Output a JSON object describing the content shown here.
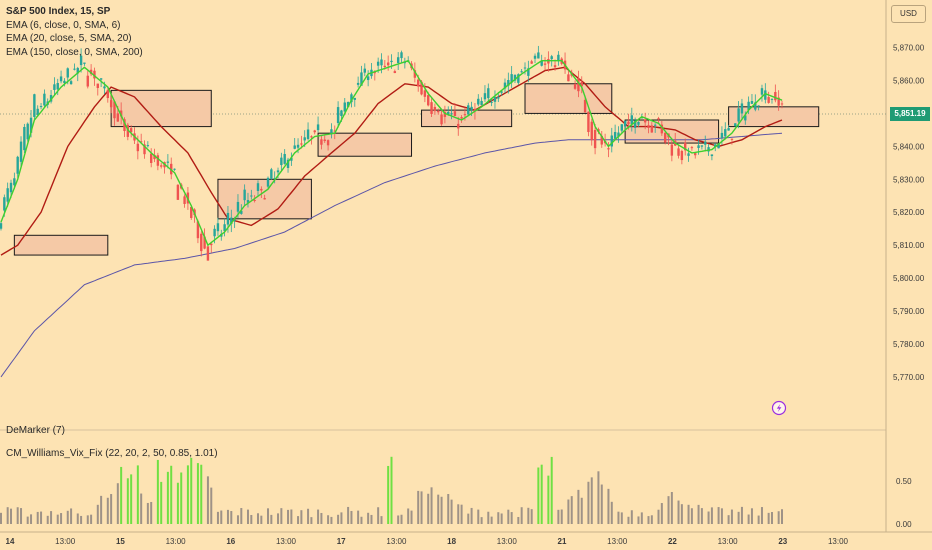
{
  "legend": {
    "title": "S&P 500 Index, 15, SP",
    "lines": [
      "EMA (6, close, 0, SMA, 6)",
      "EMA (20, close, 5, SMA, 20)",
      "EMA (150, close, 0, SMA, 200)"
    ]
  },
  "indicators": {
    "demarker": "DeMarker (7)",
    "vix_fix": "CM_Williams_Vix_Fix (22, 20, 2, 50, 0.85, 1.01)"
  },
  "currency": "USD",
  "last_price": "5,851.19",
  "colors": {
    "background": "#fde3b3",
    "candle_up": "#26a69a",
    "candle_down": "#ef5350",
    "ema_fast": "#3ecf2f",
    "ema_mid": "#b11c14",
    "ema_slow": "#5b55a8",
    "zone_fill": "#f5c9a6",
    "vix_green": "#6fe043",
    "vix_gray": "#9e9287"
  },
  "chart_data": {
    "type": "candlestick",
    "title": "S&P 500 Index, 15, SP",
    "price_axis": {
      "range": [
        5763,
        5882
      ],
      "ticks": [
        "5,870.00",
        "5,860.00",
        "5,850.00",
        "5,840.00",
        "5,830.00",
        "5,820.00",
        "5,810.00",
        "5,800.00",
        "5,790.00",
        "5,780.00",
        "5,770.00"
      ]
    },
    "indicator_axis": {
      "range": [
        0,
        1.0
      ],
      "ticks": [
        "0.50",
        "0.00"
      ]
    },
    "x_ticks": [
      "14",
      "13:00",
      "15",
      "13:00",
      "16",
      "13:00",
      "17",
      "13:00",
      "18",
      "13:00",
      "21",
      "13:00",
      "22",
      "13:00",
      "23",
      "13:00"
    ],
    "x_tick_is_day": [
      true,
      false,
      true,
      false,
      true,
      false,
      true,
      false,
      true,
      false,
      true,
      false,
      true,
      false,
      true,
      false
    ],
    "ema_fast_keypoints": [
      [
        0,
        5817
      ],
      [
        5,
        5830
      ],
      [
        10,
        5848
      ],
      [
        18,
        5858
      ],
      [
        25,
        5864
      ],
      [
        32,
        5858
      ],
      [
        38,
        5845
      ],
      [
        45,
        5838
      ],
      [
        52,
        5832
      ],
      [
        57,
        5822
      ],
      [
        62,
        5810
      ],
      [
        67,
        5814
      ],
      [
        73,
        5822
      ],
      [
        80,
        5827
      ],
      [
        88,
        5838
      ],
      [
        94,
        5843
      ],
      [
        100,
        5844
      ],
      [
        105,
        5854
      ],
      [
        110,
        5862
      ],
      [
        116,
        5864
      ],
      [
        122,
        5866
      ],
      [
        128,
        5856
      ],
      [
        133,
        5850
      ],
      [
        138,
        5848
      ],
      [
        144,
        5852
      ],
      [
        150,
        5857
      ],
      [
        156,
        5862
      ],
      [
        162,
        5866
      ],
      [
        168,
        5866
      ],
      [
        174,
        5858
      ],
      [
        178,
        5846
      ],
      [
        182,
        5840
      ],
      [
        187,
        5845
      ],
      [
        192,
        5849
      ],
      [
        197,
        5847
      ],
      [
        202,
        5841
      ],
      [
        207,
        5838
      ],
      [
        213,
        5839
      ],
      [
        219,
        5844
      ],
      [
        224,
        5851
      ],
      [
        229,
        5856
      ],
      [
        234,
        5854
      ]
    ],
    "ema_mid_keypoints": [
      [
        0,
        5807
      ],
      [
        5,
        5810
      ],
      [
        12,
        5820
      ],
      [
        20,
        5840
      ],
      [
        28,
        5852
      ],
      [
        33,
        5858
      ],
      [
        40,
        5855
      ],
      [
        48,
        5846
      ],
      [
        56,
        5838
      ],
      [
        63,
        5826
      ],
      [
        68,
        5818
      ],
      [
        75,
        5816
      ],
      [
        83,
        5821
      ],
      [
        91,
        5831
      ],
      [
        99,
        5838
      ],
      [
        106,
        5844
      ],
      [
        113,
        5853
      ],
      [
        121,
        5859
      ],
      [
        128,
        5858
      ],
      [
        135,
        5853
      ],
      [
        142,
        5851
      ],
      [
        149,
        5855
      ],
      [
        156,
        5859
      ],
      [
        163,
        5863
      ],
      [
        169,
        5864
      ],
      [
        175,
        5859
      ],
      [
        181,
        5852
      ],
      [
        188,
        5846
      ],
      [
        195,
        5846
      ],
      [
        202,
        5845
      ],
      [
        208,
        5842
      ],
      [
        215,
        5840
      ],
      [
        222,
        5842
      ],
      [
        229,
        5846
      ],
      [
        234,
        5848
      ]
    ],
    "ema_slow_keypoints": [
      [
        0,
        5770
      ],
      [
        10,
        5784
      ],
      [
        25,
        5798
      ],
      [
        40,
        5804
      ],
      [
        55,
        5806
      ],
      [
        70,
        5809
      ],
      [
        85,
        5814
      ],
      [
        100,
        5822
      ],
      [
        115,
        5829
      ],
      [
        130,
        5834
      ],
      [
        145,
        5838
      ],
      [
        160,
        5841
      ],
      [
        170,
        5842
      ],
      [
        180,
        5842
      ],
      [
        190,
        5842
      ],
      [
        200,
        5842
      ],
      [
        210,
        5842
      ],
      [
        222,
        5843
      ],
      [
        234,
        5844
      ]
    ],
    "zones": [
      {
        "x0": 4,
        "x1": 32,
        "y0": 5807,
        "y1": 5813
      },
      {
        "x0": 33,
        "x1": 63,
        "y0": 5846,
        "y1": 5857
      },
      {
        "x0": 65,
        "x1": 93,
        "y0": 5818,
        "y1": 5830
      },
      {
        "x0": 95,
        "x1": 123,
        "y0": 5837,
        "y1": 5844
      },
      {
        "x0": 126,
        "x1": 153,
        "y0": 5846,
        "y1": 5851
      },
      {
        "x0": 157,
        "x1": 183,
        "y0": 5850,
        "y1": 5859
      },
      {
        "x0": 187,
        "x1": 215,
        "y0": 5841,
        "y1": 5848
      },
      {
        "x0": 218,
        "x1": 245,
        "y0": 5846,
        "y1": 5852
      }
    ],
    "vix_overlay_green_ranges": [
      [
        36,
        41
      ],
      [
        46,
        61
      ],
      [
        115,
        118
      ],
      [
        160,
        165
      ]
    ]
  }
}
